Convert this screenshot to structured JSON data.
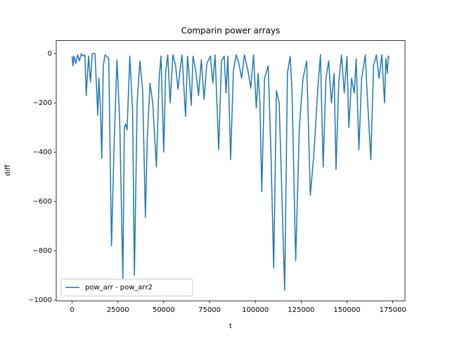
{
  "chart_data": {
    "type": "line",
    "title": "Comparin power arrays",
    "x_label": "t",
    "y_label": "diff",
    "x": [
      0,
      500,
      1000,
      2000,
      3000,
      4000,
      5000,
      6000,
      7000,
      7700,
      9000,
      10000,
      11000,
      12500,
      14000,
      14600,
      15500,
      16200,
      17000,
      18000,
      20000,
      21500,
      23000,
      24500,
      26000,
      27700,
      28500,
      29200,
      30000,
      31500,
      33000,
      34000,
      35500,
      37000,
      38500,
      40000,
      41000,
      42500,
      44000,
      46000,
      47500,
      48500,
      50000,
      51000,
      52200,
      53500,
      55000,
      56500,
      57800,
      59000,
      60000,
      61900,
      63000,
      64000,
      65000,
      66000,
      67500,
      69000,
      70500,
      72000,
      73500,
      75500,
      76800,
      78000,
      80000,
      81500,
      83000,
      84000,
      85000,
      86500,
      88000,
      89500,
      91000,
      92500,
      94000,
      96000,
      97500,
      99000,
      100500,
      101500,
      102500,
      103500,
      105000,
      107000,
      108500,
      110000,
      111500,
      113000,
      116000,
      117500,
      119000,
      120000,
      122000,
      124000,
      126000,
      128000,
      130000,
      132000,
      134000,
      135500,
      137000,
      138500,
      140000,
      141500,
      143000,
      144000,
      145500,
      147000,
      148500,
      150000,
      151000,
      152500,
      154000,
      155000,
      156500,
      158000,
      160000,
      161000,
      163000,
      164500,
      166000,
      167500,
      169000,
      170500,
      171200,
      172000,
      172500,
      173000
    ],
    "series": [
      {
        "name": "pow_arr - pow_arr2",
        "color": "#1f77b4",
        "values": [
          -10,
          -50,
          -10,
          -40,
          -5,
          -30,
          0,
          -10,
          -5,
          -170,
          -10,
          -115,
          0,
          0,
          -250,
          -100,
          -230,
          -425,
          -50,
          -5,
          -20,
          -780,
          -350,
          -25,
          -280,
          -915,
          -300,
          -285,
          -310,
          -10,
          -230,
          -900,
          -200,
          -30,
          -150,
          -665,
          -350,
          -120,
          -200,
          -460,
          -100,
          -10,
          -400,
          -80,
          -5,
          -200,
          -5,
          -50,
          -145,
          -60,
          -5,
          -255,
          -10,
          -100,
          -210,
          -10,
          -70,
          -170,
          -25,
          -185,
          -40,
          -10,
          -120,
          -5,
          -390,
          -30,
          -10,
          -160,
          -10,
          -430,
          -70,
          -5,
          -40,
          -100,
          -5,
          -70,
          -140,
          -5,
          -220,
          -80,
          -200,
          -560,
          -100,
          -50,
          -400,
          -870,
          -150,
          -200,
          -960,
          -80,
          -10,
          -150,
          -840,
          -300,
          -100,
          -30,
          -575,
          -400,
          -150,
          -5,
          -460,
          -100,
          -30,
          -200,
          -80,
          -470,
          -120,
          -5,
          -160,
          -10,
          -300,
          -100,
          -160,
          -20,
          -390,
          -100,
          -5,
          -160,
          -430,
          -50,
          -5,
          -100,
          -5,
          -200,
          -20,
          -80,
          -10,
          -20
        ]
      }
    ],
    "xlim": [
      -8650,
      181650
    ],
    "ylim": [
      -1003,
      53
    ],
    "xticks": [
      0,
      25000,
      50000,
      75000,
      100000,
      125000,
      150000,
      175000
    ],
    "yticks": [
      {
        "value": -1000,
        "label": "−1000"
      },
      {
        "value": -800,
        "label": "−800"
      },
      {
        "value": -600,
        "label": "−600"
      },
      {
        "value": -400,
        "label": "−400"
      },
      {
        "value": -200,
        "label": "−200"
      },
      0
    ],
    "legend": "lower left"
  }
}
